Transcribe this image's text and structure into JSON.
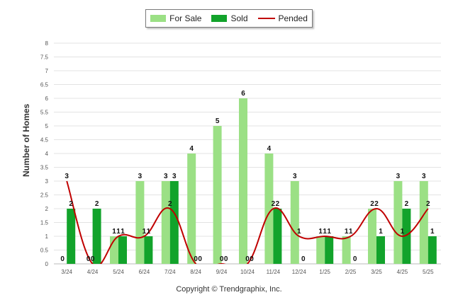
{
  "legend": {
    "for_sale": "For Sale",
    "sold": "Sold",
    "pended": "Pended"
  },
  "footer": "Copyright © Trendgraphix, Inc.",
  "colors": {
    "for_sale": "#9be085",
    "sold": "#12a32b",
    "pended": "#c00000"
  },
  "chart_data": {
    "type": "bar",
    "ylabel": "Number of Homes",
    "xlabel": "",
    "ylim": [
      0,
      8
    ],
    "y_ticks": [
      "0",
      "0.5",
      "1",
      "1.5",
      "2",
      "2.5",
      "3",
      "3.5",
      "4",
      "4.5",
      "5",
      "5.5",
      "6",
      "6.5",
      "7",
      "7.5",
      "8"
    ],
    "categories": [
      "3/24",
      "4/24",
      "5/24",
      "6/24",
      "7/24",
      "8/24",
      "9/24",
      "10/24",
      "11/24",
      "12/24",
      "1/25",
      "2/25",
      "3/25",
      "4/25",
      "5/25"
    ],
    "grid": true,
    "legend_position": "top",
    "series": [
      {
        "name": "For Sale",
        "kind": "bar",
        "values": [
          0,
          0,
          1,
          3,
          3,
          4,
          5,
          6,
          4,
          3,
          1,
          1,
          2,
          3,
          3
        ]
      },
      {
        "name": "Sold",
        "kind": "bar",
        "values": [
          2,
          2,
          1,
          1,
          3,
          0,
          0,
          0,
          2,
          0,
          1,
          0,
          1,
          2,
          1
        ]
      },
      {
        "name": "Pended",
        "kind": "line",
        "values": [
          3,
          0,
          1,
          1,
          2,
          0,
          0,
          0,
          2,
          1,
          1,
          1,
          2,
          1,
          2
        ]
      }
    ]
  }
}
